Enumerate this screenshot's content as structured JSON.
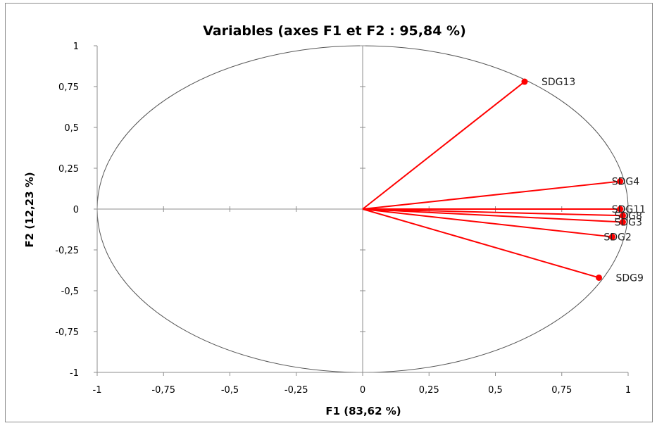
{
  "chart_data": {
    "type": "scatter",
    "title": "Variables (axes F1 et F2 : 95,84 %)",
    "xlabel": "F1 (83,62 %)",
    "ylabel": "F2 (12,23 %)",
    "xlim": [
      -1,
      1
    ],
    "ylim": [
      -1,
      1
    ],
    "x_ticks": [
      "-1",
      "-0,75",
      "-0,5",
      "-0,25",
      "0",
      "0,25",
      "0,5",
      "0,75",
      "1"
    ],
    "y_ticks": [
      "1",
      "0,75",
      "0,5",
      "0,25",
      "0",
      "-0,25",
      "-0,5",
      "-0,75",
      "-1"
    ],
    "correlation_circle": true,
    "grid": false,
    "series_color": "#ff0000",
    "points": [
      {
        "label": "SDG13",
        "x": 0.61,
        "y": 0.78
      },
      {
        "label": "SDG4",
        "x": 0.97,
        "y": 0.17
      },
      {
        "label": "SDG11",
        "x": 0.97,
        "y": 0.0
      },
      {
        "label": "SDG8",
        "x": 0.98,
        "y": -0.04
      },
      {
        "label": "SDG3",
        "x": 0.98,
        "y": -0.08
      },
      {
        "label": "SDG2",
        "x": 0.94,
        "y": -0.17
      },
      {
        "label": "SDG9",
        "x": 0.89,
        "y": -0.42
      }
    ]
  }
}
